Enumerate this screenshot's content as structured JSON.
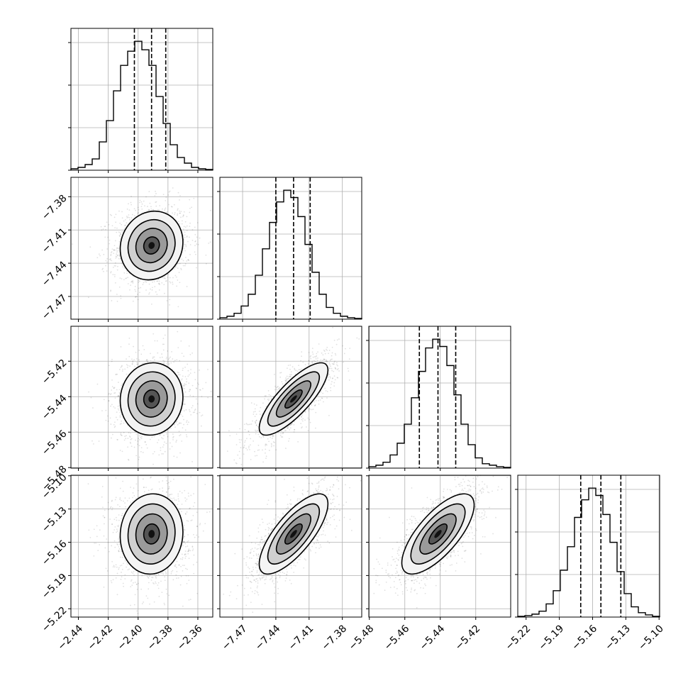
{
  "parameters": [
    {
      "id": "p0",
      "median": -2.391,
      "lo": -2.4025,
      "hi": -2.3815,
      "sd": 0.0105,
      "xlim": [
        -2.445,
        -2.35
      ],
      "ticks": [
        -2.44,
        -2.42,
        -2.4,
        -2.38,
        -2.36
      ],
      "tick_labels": [
        "−2.44",
        "−2.42",
        "−2.40",
        "−2.38",
        "−2.36"
      ]
    },
    {
      "id": "p1",
      "median": -7.424,
      "lo": -7.44,
      "hi": -7.409,
      "sd": 0.0155,
      "xlim": [
        -7.4905,
        -7.3625
      ],
      "ticks": [
        -7.47,
        -7.44,
        -7.41,
        -7.38
      ],
      "tick_labels": [
        "−7.47",
        "−7.44",
        "−7.41",
        "−7.38"
      ]
    },
    {
      "id": "p2",
      "median": -5.4413,
      "lo": -5.4518,
      "hi": -5.4313,
      "sd": 0.0102,
      "xlim": [
        -5.4803,
        -5.4003
      ],
      "ticks": [
        -5.48,
        -5.46,
        -5.44,
        -5.42
      ],
      "tick_labels": [
        "−5.48",
        "−5.46",
        "−5.44",
        "−5.42"
      ]
    },
    {
      "id": "p3",
      "median": -5.1525,
      "lo": -5.1707,
      "hi": -5.1345,
      "sd": 0.0181,
      "xlim": [
        -5.2275,
        -5.0995
      ],
      "ticks": [
        -5.22,
        -5.19,
        -5.16,
        -5.13,
        -5.1
      ],
      "tick_labels": [
        "−5.22",
        "−5.19",
        "−5.16",
        "−5.13",
        "−5.10"
      ]
    }
  ],
  "chart_data": {
    "type": "corner",
    "grid": true,
    "quantile_markers": [
      "lo",
      "median",
      "hi"
    ],
    "correlations": [
      {
        "row": 1,
        "col": 0,
        "rho": 0.1
      },
      {
        "row": 2,
        "col": 0,
        "rho": 0.05
      },
      {
        "row": 2,
        "col": 1,
        "rho": 0.8
      },
      {
        "row": 3,
        "col": 0,
        "rho": 0.05
      },
      {
        "row": 3,
        "col": 1,
        "rho": 0.75
      },
      {
        "row": 3,
        "col": 2,
        "rho": 0.72
      }
    ],
    "histograms": [
      {
        "bins": 20,
        "counts": [
          2,
          4,
          8,
          16,
          40,
          70,
          112,
          148,
          168,
          182,
          170,
          148,
          104,
          66,
          36,
          18,
          10,
          4,
          2,
          1
        ]
      },
      {
        "bins": 20,
        "counts": [
          2,
          4,
          8,
          18,
          34,
          60,
          96,
          132,
          160,
          176,
          166,
          140,
          102,
          64,
          34,
          16,
          8,
          4,
          2,
          1
        ]
      },
      {
        "bins": 20,
        "counts": [
          2,
          4,
          8,
          18,
          34,
          60,
          96,
          132,
          164,
          176,
          166,
          140,
          100,
          60,
          32,
          14,
          6,
          4,
          2,
          1
        ]
      },
      {
        "bins": 20,
        "counts": [
          1,
          2,
          4,
          8,
          18,
          36,
          64,
          96,
          136,
          160,
          176,
          166,
          140,
          102,
          62,
          32,
          14,
          6,
          3,
          1
        ]
      }
    ]
  }
}
